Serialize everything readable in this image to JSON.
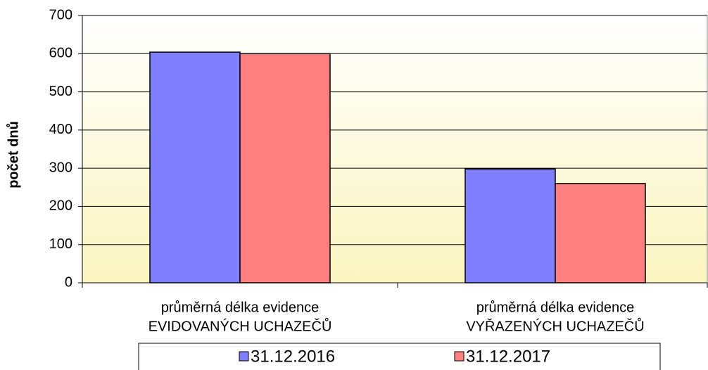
{
  "chart_data": {
    "type": "bar",
    "y_label": "počet dnů",
    "categories": [
      [
        "průměrná délka evidence",
        "EVIDOVANÝCH UCHAZEČŮ"
      ],
      [
        "průměrná délka evidence",
        "VYŘAZENÝCH UCHAZEČŮ"
      ]
    ],
    "series": [
      {
        "name": "31.12.2016",
        "color": "#8080ff",
        "values": [
          604,
          298
        ]
      },
      {
        "name": "31.12.2017",
        "color": "#ff8080",
        "values": [
          600,
          260
        ]
      }
    ],
    "ylim": [
      0,
      700
    ],
    "yticks": [
      0,
      100,
      200,
      300,
      400,
      500,
      600,
      700
    ],
    "grid": true,
    "legend": "bottom"
  }
}
